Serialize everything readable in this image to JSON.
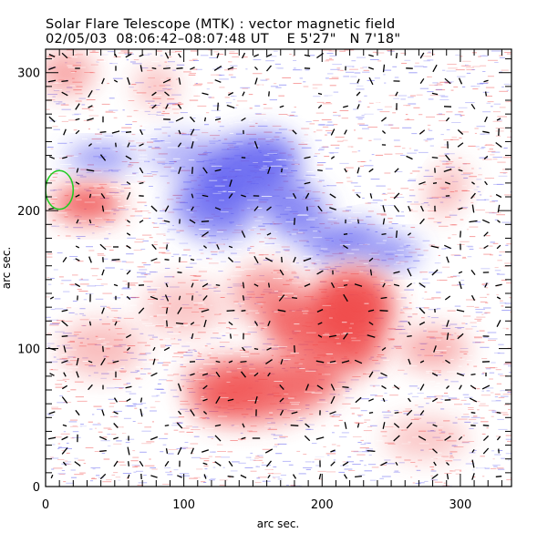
{
  "chart_data": {
    "type": "heatmap",
    "title": "Solar Flare Telescope (MTK) : vector magnetic field",
    "subtitle": {
      "date": "02/05/03",
      "time_range": "08:06:42–08:07:48 UT",
      "longitude": "E 5'27\"",
      "latitude": "N 7'18\""
    },
    "xlabel": "arc sec.",
    "ylabel": "arc sec.",
    "xlim": [
      0,
      337
    ],
    "ylim": [
      0,
      317
    ],
    "x_ticks": [
      0,
      100,
      200,
      300
    ],
    "y_ticks": [
      0,
      100,
      200,
      300
    ],
    "minor_tick_step": 10,
    "colors": {
      "positive_polarity": "#f04848",
      "negative_polarity": "#5a5af0",
      "vectors": "#000000",
      "marker_ellipse": "#22cc22",
      "background": "#ffffff"
    },
    "regions": [
      {
        "polarity": "negative",
        "center": [
          145,
          225
        ],
        "label": "blue lobe north"
      },
      {
        "polarity": "negative",
        "center": [
          225,
          170
        ],
        "label": "blue lobe east"
      },
      {
        "polarity": "negative",
        "center": [
          20,
          240
        ],
        "label": "blue patch west"
      },
      {
        "polarity": "positive",
        "center": [
          220,
          130
        ],
        "label": "red core"
      },
      {
        "polarity": "positive",
        "center": [
          160,
          70
        ],
        "label": "red south"
      },
      {
        "polarity": "positive",
        "center": [
          30,
          205
        ],
        "label": "red west"
      },
      {
        "polarity": "positive",
        "center": [
          160,
          135
        ],
        "label": "red mid"
      }
    ],
    "marker": {
      "shape": "ellipse",
      "center": [
        10,
        215
      ],
      "semi_axes": [
        10,
        14
      ]
    }
  }
}
